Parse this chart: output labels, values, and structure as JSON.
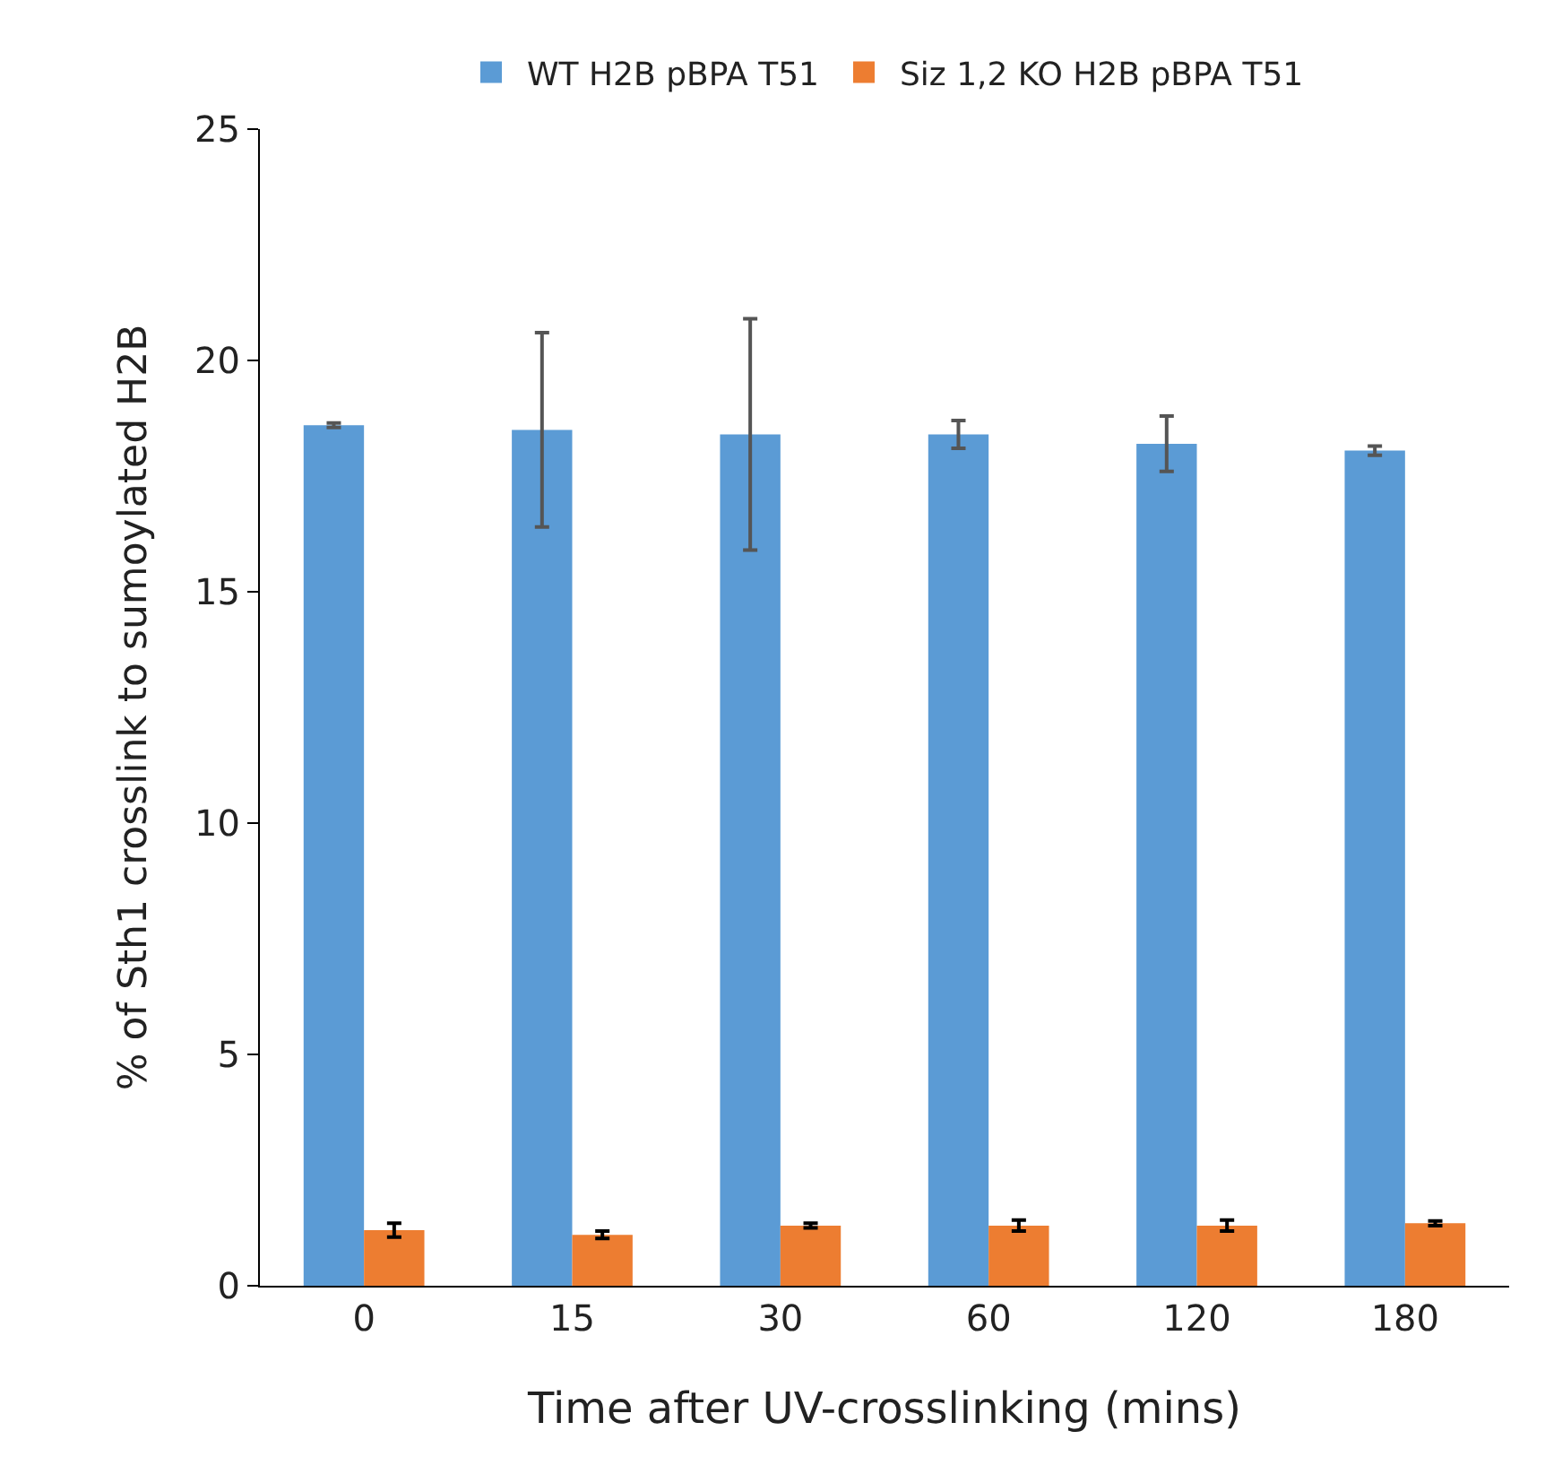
{
  "chart_data": {
    "type": "bar",
    "xlabel": "Time after UV-crosslinking (mins)",
    "ylabel": "% of Sth1 crosslink to sumoylated H2B",
    "categories": [
      "0",
      "15",
      "30",
      "60",
      "120",
      "180"
    ],
    "series": [
      {
        "name": "WT H2B pBPA T51",
        "color": "#5b9bd5",
        "values": [
          18.6,
          18.5,
          18.4,
          18.4,
          18.2,
          18.05
        ],
        "errors": [
          0.05,
          2.1,
          2.5,
          0.3,
          0.6,
          0.1
        ]
      },
      {
        "name": "Siz 1,2 KO H2B pBPA T51",
        "color": "#ed7d31",
        "values": [
          1.2,
          1.1,
          1.3,
          1.3,
          1.3,
          1.35
        ],
        "errors": [
          0.15,
          0.08,
          0.05,
          0.12,
          0.12,
          0.05
        ]
      }
    ],
    "ylim": [
      0,
      25
    ],
    "yticks": [
      0,
      5,
      10,
      15,
      20,
      25
    ],
    "grid": false,
    "legend": "top"
  }
}
